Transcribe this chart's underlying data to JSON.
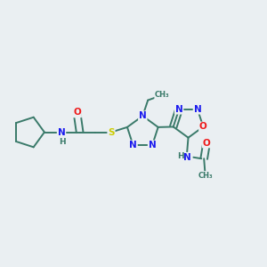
{
  "background_color": "#eaeff2",
  "figsize": [
    3.0,
    3.0
  ],
  "dpi": 100,
  "bond_color": "#3a7a6a",
  "atom_colors": {
    "N": "#1a1aee",
    "O": "#ee1a1a",
    "S": "#cccc00",
    "C": "#3a7a6a",
    "H": "#3a7a6a"
  },
  "font_size": 7.5
}
